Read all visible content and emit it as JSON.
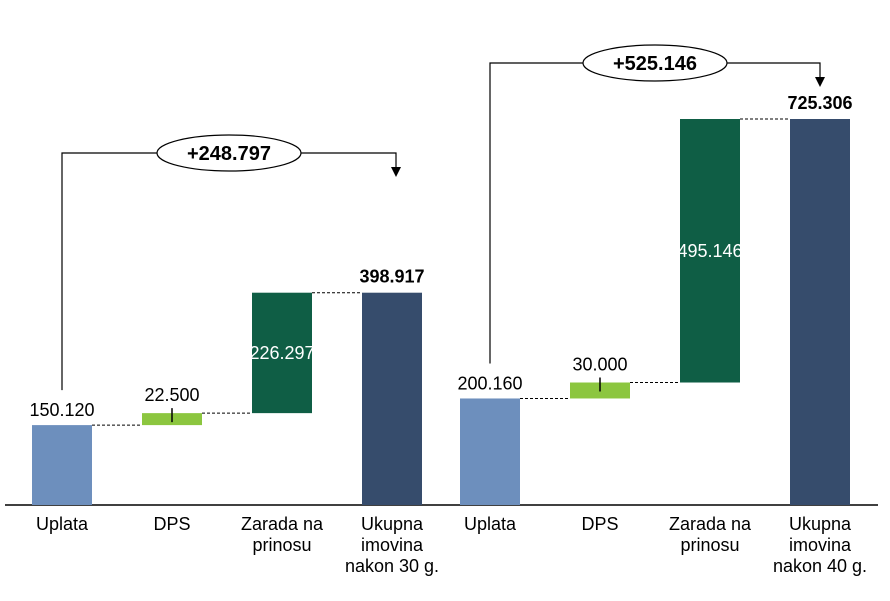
{
  "colors": {
    "uplata": "#6d8fbd",
    "dps": "#8cc63f",
    "zarada": "#0f5e45",
    "ukupno": "#364c6c",
    "axis": "#000000",
    "connector": "#000000"
  },
  "chart_data": [
    {
      "type": "waterfall",
      "title": "",
      "ylim": [
        0,
        800000
      ],
      "categories": [
        "Uplata",
        "DPS",
        "Zarada na prinosu",
        "Ukupna imovina nakon 30 g."
      ],
      "category_lines": [
        [
          "Uplata"
        ],
        [
          "DPS"
        ],
        [
          "Zarada na",
          "prinosu"
        ],
        [
          "Ukupna",
          "imovina",
          "nakon 30 g."
        ]
      ],
      "values": [
        150120,
        22500,
        226297,
        398917
      ],
      "labels": [
        "150.120",
        "22.500",
        "226.297",
        "398.917"
      ],
      "kinds": [
        "base",
        "increment",
        "increment",
        "total"
      ],
      "callout": {
        "text": "+248.797",
        "value": 248797
      }
    },
    {
      "type": "waterfall",
      "title": "",
      "ylim": [
        0,
        800000
      ],
      "categories": [
        "Uplata",
        "DPS",
        "Zarada na prinosu",
        "Ukupna imovina nakon 40 g."
      ],
      "category_lines": [
        [
          "Uplata"
        ],
        [
          "DPS"
        ],
        [
          "Zarada na",
          "prinosu"
        ],
        [
          "Ukupna",
          "imovina",
          "nakon 40 g."
        ]
      ],
      "values": [
        200160,
        30000,
        495146,
        725306
      ],
      "labels": [
        "200.160",
        "30.000",
        "495.146",
        "725.306"
      ],
      "kinds": [
        "base",
        "increment",
        "increment",
        "total"
      ],
      "callout": {
        "text": "+525.146",
        "value": 525146
      }
    }
  ]
}
